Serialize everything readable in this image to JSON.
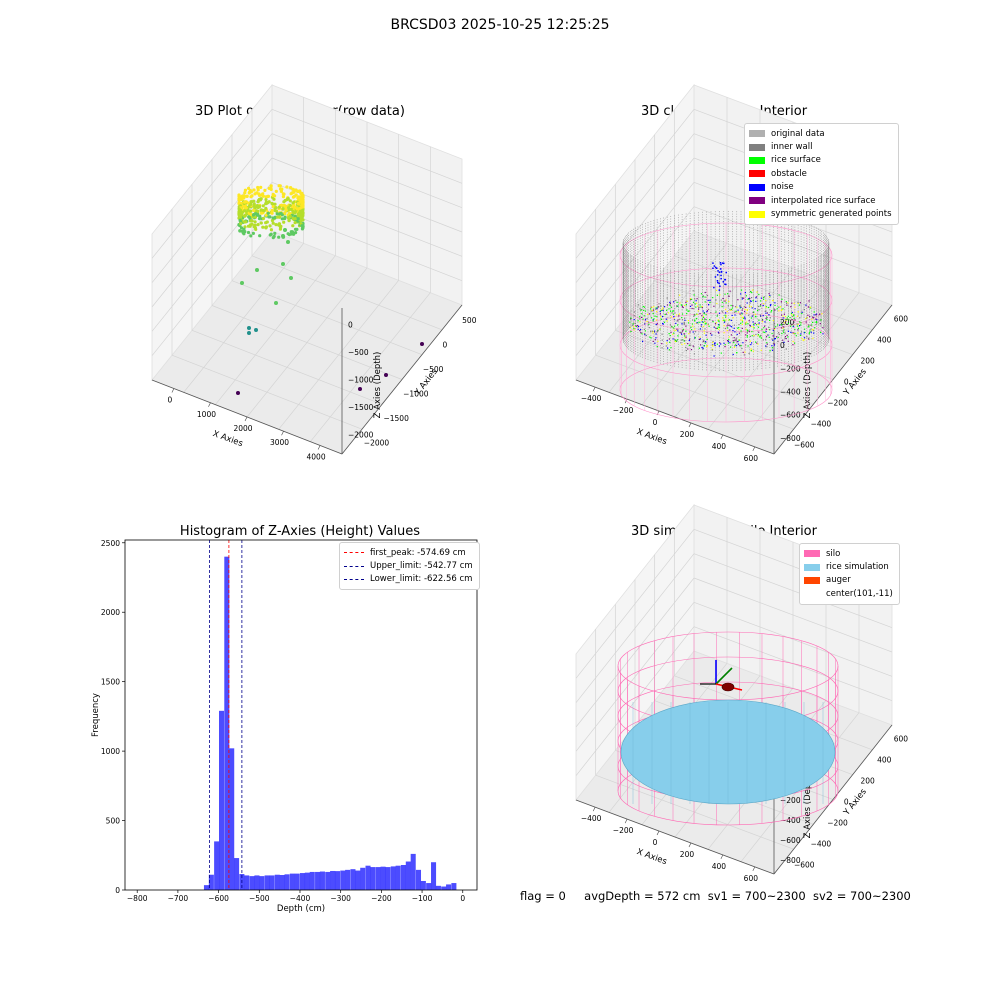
{
  "suptitle": "BRCSD03 2025-10-25 12:25:25",
  "footer": {
    "flag": "flag = 0",
    "avg": "avgDepth = 572 cm",
    "sv1": "sv1 = 700~2300",
    "sv2": "sv2 = 700~2300"
  },
  "panels": {
    "raw": {
      "title": "3D Plot of Silo Interior(row data)",
      "xlabel": "X Axies",
      "ylabel": "Y Axies",
      "zlabel": "Z Axies (Depth)",
      "xticks": [
        "0",
        "1000",
        "2000",
        "3000",
        "4000"
      ],
      "yticks": [
        "500",
        "0",
        "−500",
        "−1000",
        "−1500",
        "−2000"
      ],
      "zticks": [
        "0",
        "−500",
        "−1000",
        "−1500",
        "−2000"
      ],
      "colors": [
        "#440154",
        "#3b528b",
        "#21918c",
        "#5ec962",
        "#fde725"
      ]
    },
    "classify": {
      "title": "3D classify of Silo Interior",
      "xlabel": "X Axies",
      "ylabel": "Y Axies",
      "zlabel": "Z Axies (Depth)",
      "xticks": [
        "−400",
        "−200",
        "0",
        "200",
        "400",
        "600"
      ],
      "yticks": [
        "600",
        "400",
        "200",
        "0",
        "−200",
        "−400",
        "−600"
      ],
      "zticks": [
        "200",
        "0",
        "−200",
        "−400",
        "−600",
        "−800"
      ],
      "legend": [
        {
          "label": "original data",
          "color": "#b0b0b0"
        },
        {
          "label": "inner wall",
          "color": "#808080"
        },
        {
          "label": "rice surface",
          "color": "#00ff00"
        },
        {
          "label": "obstacle",
          "color": "#ff0000"
        },
        {
          "label": "noise",
          "color": "#0000ff"
        },
        {
          "label": "interpolated rice surface",
          "color": "#800080"
        },
        {
          "label": "symmetric generated points",
          "color": "#ffff00"
        }
      ]
    },
    "simulation": {
      "title": "3D simulation of Silo Interior",
      "xlabel": "X Axies",
      "ylabel": "Y Axies",
      "zlabel": "Z Axies (Depth)",
      "xticks": [
        "−400",
        "−200",
        "0",
        "200",
        "400",
        "600"
      ],
      "yticks": [
        "600",
        "400",
        "200",
        "0",
        "−200",
        "−400",
        "−600"
      ],
      "zticks": [
        "400",
        "200",
        "0",
        "−200",
        "−400",
        "−600",
        "−800"
      ],
      "legend": [
        {
          "label": "silo",
          "color": "#ff69b4"
        },
        {
          "label": "rice simulation",
          "color": "#87ceeb"
        },
        {
          "label": "auger",
          "color": "#ff4500"
        },
        {
          "label": "center(101,-11)",
          "color": ""
        }
      ]
    }
  },
  "chart_data": [
    {
      "type": "scatter",
      "title": "3D Plot of Silo Interior(row data)",
      "xlabel": "X Axies",
      "ylabel": "Y Axies",
      "zlabel": "Z Axies (Depth)",
      "xlim": [
        -700,
        4200
      ],
      "ylim": [
        -2200,
        700
      ],
      "zlim": [
        -2300,
        100
      ],
      "grid": true
    },
    {
      "type": "scatter",
      "title": "3D classify of Silo Interior",
      "xlabel": "X Axies",
      "ylabel": "Y Axies",
      "zlabel": "Z Axies (Depth)",
      "xlim": [
        -500,
        700
      ],
      "ylim": [
        -650,
        650
      ],
      "zlim": [
        -900,
        300
      ],
      "legend_position": "top-right",
      "grid": true
    },
    {
      "type": "bar",
      "title": "Histogram of Z-Axies (Height) Values",
      "xlabel": "Depth (cm)",
      "ylabel": "Frequency",
      "xlim": [
        -830,
        35
      ],
      "ylim": [
        0,
        2520
      ],
      "xticks": [
        -800,
        -700,
        -600,
        -500,
        -400,
        -300,
        -200,
        -100,
        0
      ],
      "yticks": [
        0,
        500,
        1000,
        1500,
        2000,
        2500
      ],
      "bar_color": "#0000ff",
      "bin_width": 12.4,
      "bins": [
        [
          -636,
          35
        ],
        [
          -624,
          110
        ],
        [
          -611,
          350
        ],
        [
          -599,
          1290
        ],
        [
          -586,
          2400
        ],
        [
          -574,
          1020
        ],
        [
          -562,
          230
        ],
        [
          -549,
          115
        ],
        [
          -537,
          105
        ],
        [
          -524,
          100
        ],
        [
          -512,
          105
        ],
        [
          -500,
          100
        ],
        [
          -487,
          105
        ],
        [
          -475,
          105
        ],
        [
          -462,
          110
        ],
        [
          -450,
          108
        ],
        [
          -438,
          113
        ],
        [
          -425,
          118
        ],
        [
          -413,
          118
        ],
        [
          -400,
          122
        ],
        [
          -388,
          125
        ],
        [
          -376,
          130
        ],
        [
          -363,
          130
        ],
        [
          -351,
          133
        ],
        [
          -338,
          130
        ],
        [
          -326,
          137
        ],
        [
          -314,
          136
        ],
        [
          -301,
          140
        ],
        [
          -289,
          145
        ],
        [
          -276,
          150
        ],
        [
          -264,
          140
        ],
        [
          -252,
          160
        ],
        [
          -239,
          175
        ],
        [
          -227,
          165
        ],
        [
          -214,
          165
        ],
        [
          -202,
          168
        ],
        [
          -190,
          165
        ],
        [
          -177,
          170
        ],
        [
          -165,
          175
        ],
        [
          -152,
          180
        ],
        [
          -140,
          205
        ],
        [
          -128,
          260
        ],
        [
          -115,
          145
        ],
        [
          -103,
          65
        ],
        [
          -90,
          50
        ],
        [
          -78,
          200
        ],
        [
          -66,
          30
        ],
        [
          -53,
          25
        ],
        [
          -41,
          40
        ],
        [
          -28,
          50
        ]
      ],
      "vlines": [
        {
          "label": "first_peak: -574.69 cm",
          "value": -574.69,
          "color": "#ff0000"
        },
        {
          "label": "Upper_limit: -542.77 cm",
          "value": -542.77,
          "color": "#00008b"
        },
        {
          "label": "Lower_limit: -622.56 cm",
          "value": -622.56,
          "color": "#00008b"
        }
      ],
      "legend_position": "top-right"
    },
    {
      "type": "scatter",
      "title": "3D simulation of Silo Interior",
      "xlabel": "X Axies",
      "ylabel": "Y Axies",
      "zlabel": "Z Axies (Depth)",
      "xlim": [
        -500,
        700
      ],
      "ylim": [
        -650,
        650
      ],
      "zlim": [
        -900,
        450
      ],
      "legend_position": "top-right",
      "grid": true
    }
  ]
}
